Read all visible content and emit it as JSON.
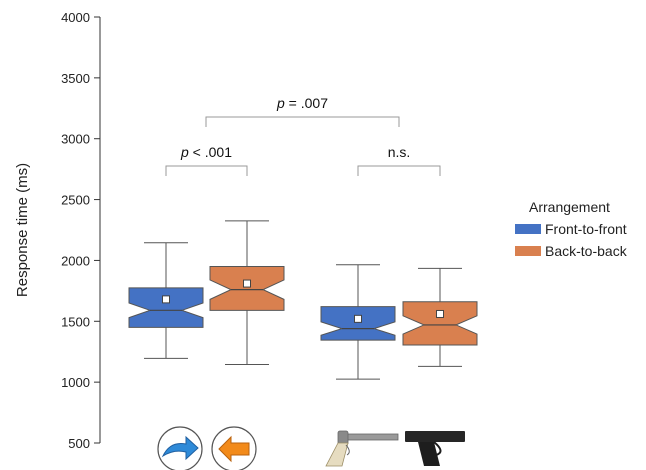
{
  "chart_data": {
    "type": "boxplot",
    "title": "",
    "ylabel": "Response time (ms)",
    "ylim": [
      500,
      4000
    ],
    "yticks": [
      500,
      1000,
      1500,
      2000,
      2500,
      3000,
      3500,
      4000
    ],
    "grid": false,
    "legend": {
      "title": "Arrangement",
      "position": "right",
      "entries": [
        {
          "name": "Front-to-front",
          "color": "#4472c4"
        },
        {
          "name": "Back-to-back",
          "color": "#d9804f"
        }
      ]
    },
    "groups": [
      {
        "icons": [
          "right-arrow-icon",
          "left-arrow-icon"
        ],
        "boxes": [
          {
            "series": "Front-to-front",
            "whisker_low": 1195,
            "q1": 1450,
            "median": 1590,
            "q3": 1775,
            "whisker_high": 2145,
            "notch_low": 1530,
            "notch_high": 1650,
            "mean": 1680
          },
          {
            "series": "Back-to-back",
            "whisker_low": 1145,
            "q1": 1590,
            "median": 1760,
            "q3": 1950,
            "whisker_high": 2325,
            "notch_low": 1680,
            "notch_high": 1840,
            "mean": 1810
          }
        ]
      },
      {
        "icons": [
          "revolver-icon",
          "pistol-icon"
        ],
        "boxes": [
          {
            "series": "Front-to-front",
            "whisker_low": 1025,
            "q1": 1345,
            "median": 1440,
            "q3": 1620,
            "whisker_high": 1965,
            "notch_low": 1385,
            "notch_high": 1495,
            "mean": 1520
          },
          {
            "series": "Back-to-back",
            "whisker_low": 1130,
            "q1": 1305,
            "median": 1470,
            "q3": 1660,
            "whisker_high": 1935,
            "notch_low": 1395,
            "notch_high": 1545,
            "mean": 1560
          }
        ]
      }
    ],
    "annotations": [
      {
        "text": "p < .001",
        "pair": "group1"
      },
      {
        "text": "n.s.",
        "pair": "group2"
      },
      {
        "text": "p = .007",
        "pair": "between-groups"
      }
    ]
  }
}
